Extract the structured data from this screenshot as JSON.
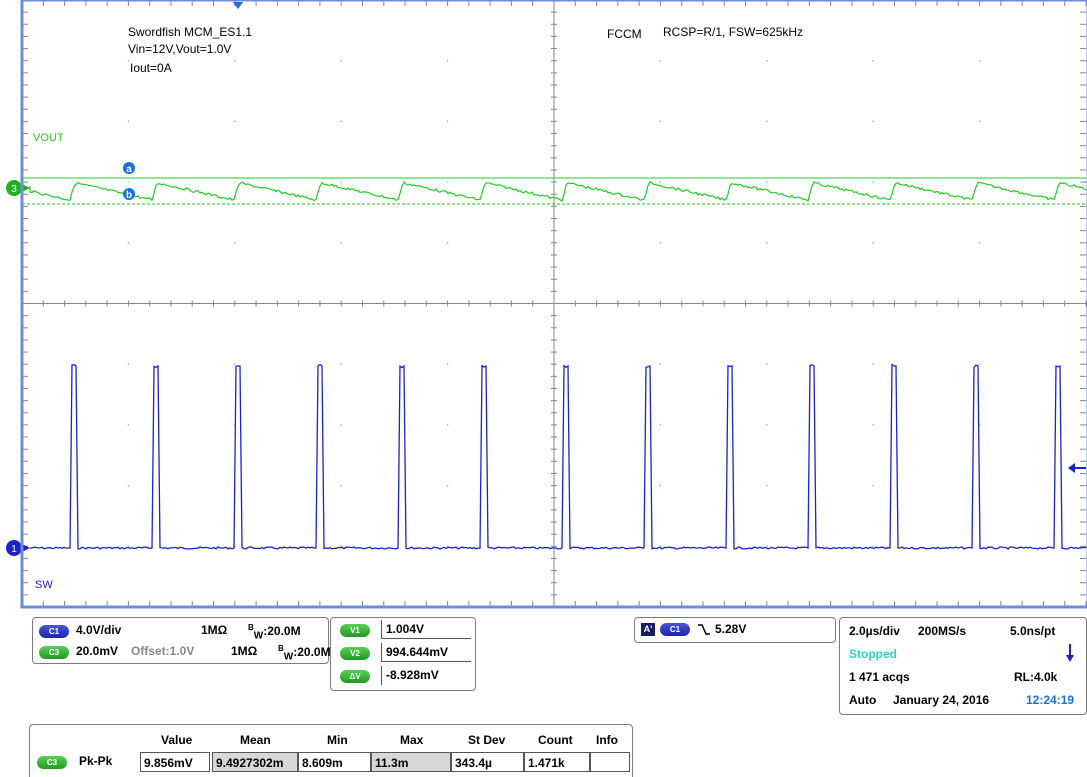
{
  "screen": {
    "title_lines": [
      "Swordfish MCM_ES1.1",
      "Vin=12V,Vout=1.0V",
      "Iout=0A"
    ],
    "mode": "FCCM",
    "config": "RCSP=R/1, FSW=625kHz",
    "vout_label": "VOUT",
    "sw_label": "SW",
    "ch3_marker": "3",
    "ch1_marker": "1",
    "cursor_a": "a",
    "cursor_b": "b"
  },
  "colors": {
    "ch1": "#1a24c8",
    "ch3": "#22cc22",
    "grid": "#a8a8a8",
    "border": "#6a8fd8",
    "stopped": "#33cccc"
  },
  "channels": {
    "c1": {
      "badge": "C1",
      "scale": "4.0V/div",
      "imp": "1MΩ",
      "bw_prefix": "B",
      "bw_sub": "W",
      "bw": ":20.0M"
    },
    "c3": {
      "badge": "C3",
      "scale": "20.0mV",
      "offset": "Offset:1.0V",
      "imp": "1MΩ",
      "bw_prefix": "B",
      "bw_sub": "W",
      "bw": ":20.0M"
    }
  },
  "cursors": {
    "v1": {
      "badge": "V1",
      "value": "1.004V"
    },
    "v2": {
      "badge": "V2",
      "value": "994.644mV"
    },
    "dv": {
      "badge": "ΔV",
      "value": "-8.928mV"
    }
  },
  "trigger": {
    "mode_badge": "A'",
    "ch_badge": "C1",
    "slope_icon": "falling-edge-icon",
    "level": "5.28V"
  },
  "timebase": {
    "tdiv": "2.0µs/div",
    "rate": "200MS/s",
    "res": "5.0ns/pt",
    "state": "Stopped",
    "acqs": "1 471 acqs",
    "rl": "RL:4.0k",
    "trig_mode": "Auto",
    "date": "January 24, 2016",
    "time": "12:24:19"
  },
  "measurement": {
    "headers": [
      "Value",
      "Mean",
      "Min",
      "Max",
      "St Dev",
      "Count",
      "Info"
    ],
    "row": {
      "badge": "C3",
      "name": "Pk-Pk",
      "values": [
        "9.856mV",
        "9.4927302m",
        "8.609m",
        "11.3m",
        "343.4µ",
        "1.471k",
        ""
      ]
    }
  }
}
